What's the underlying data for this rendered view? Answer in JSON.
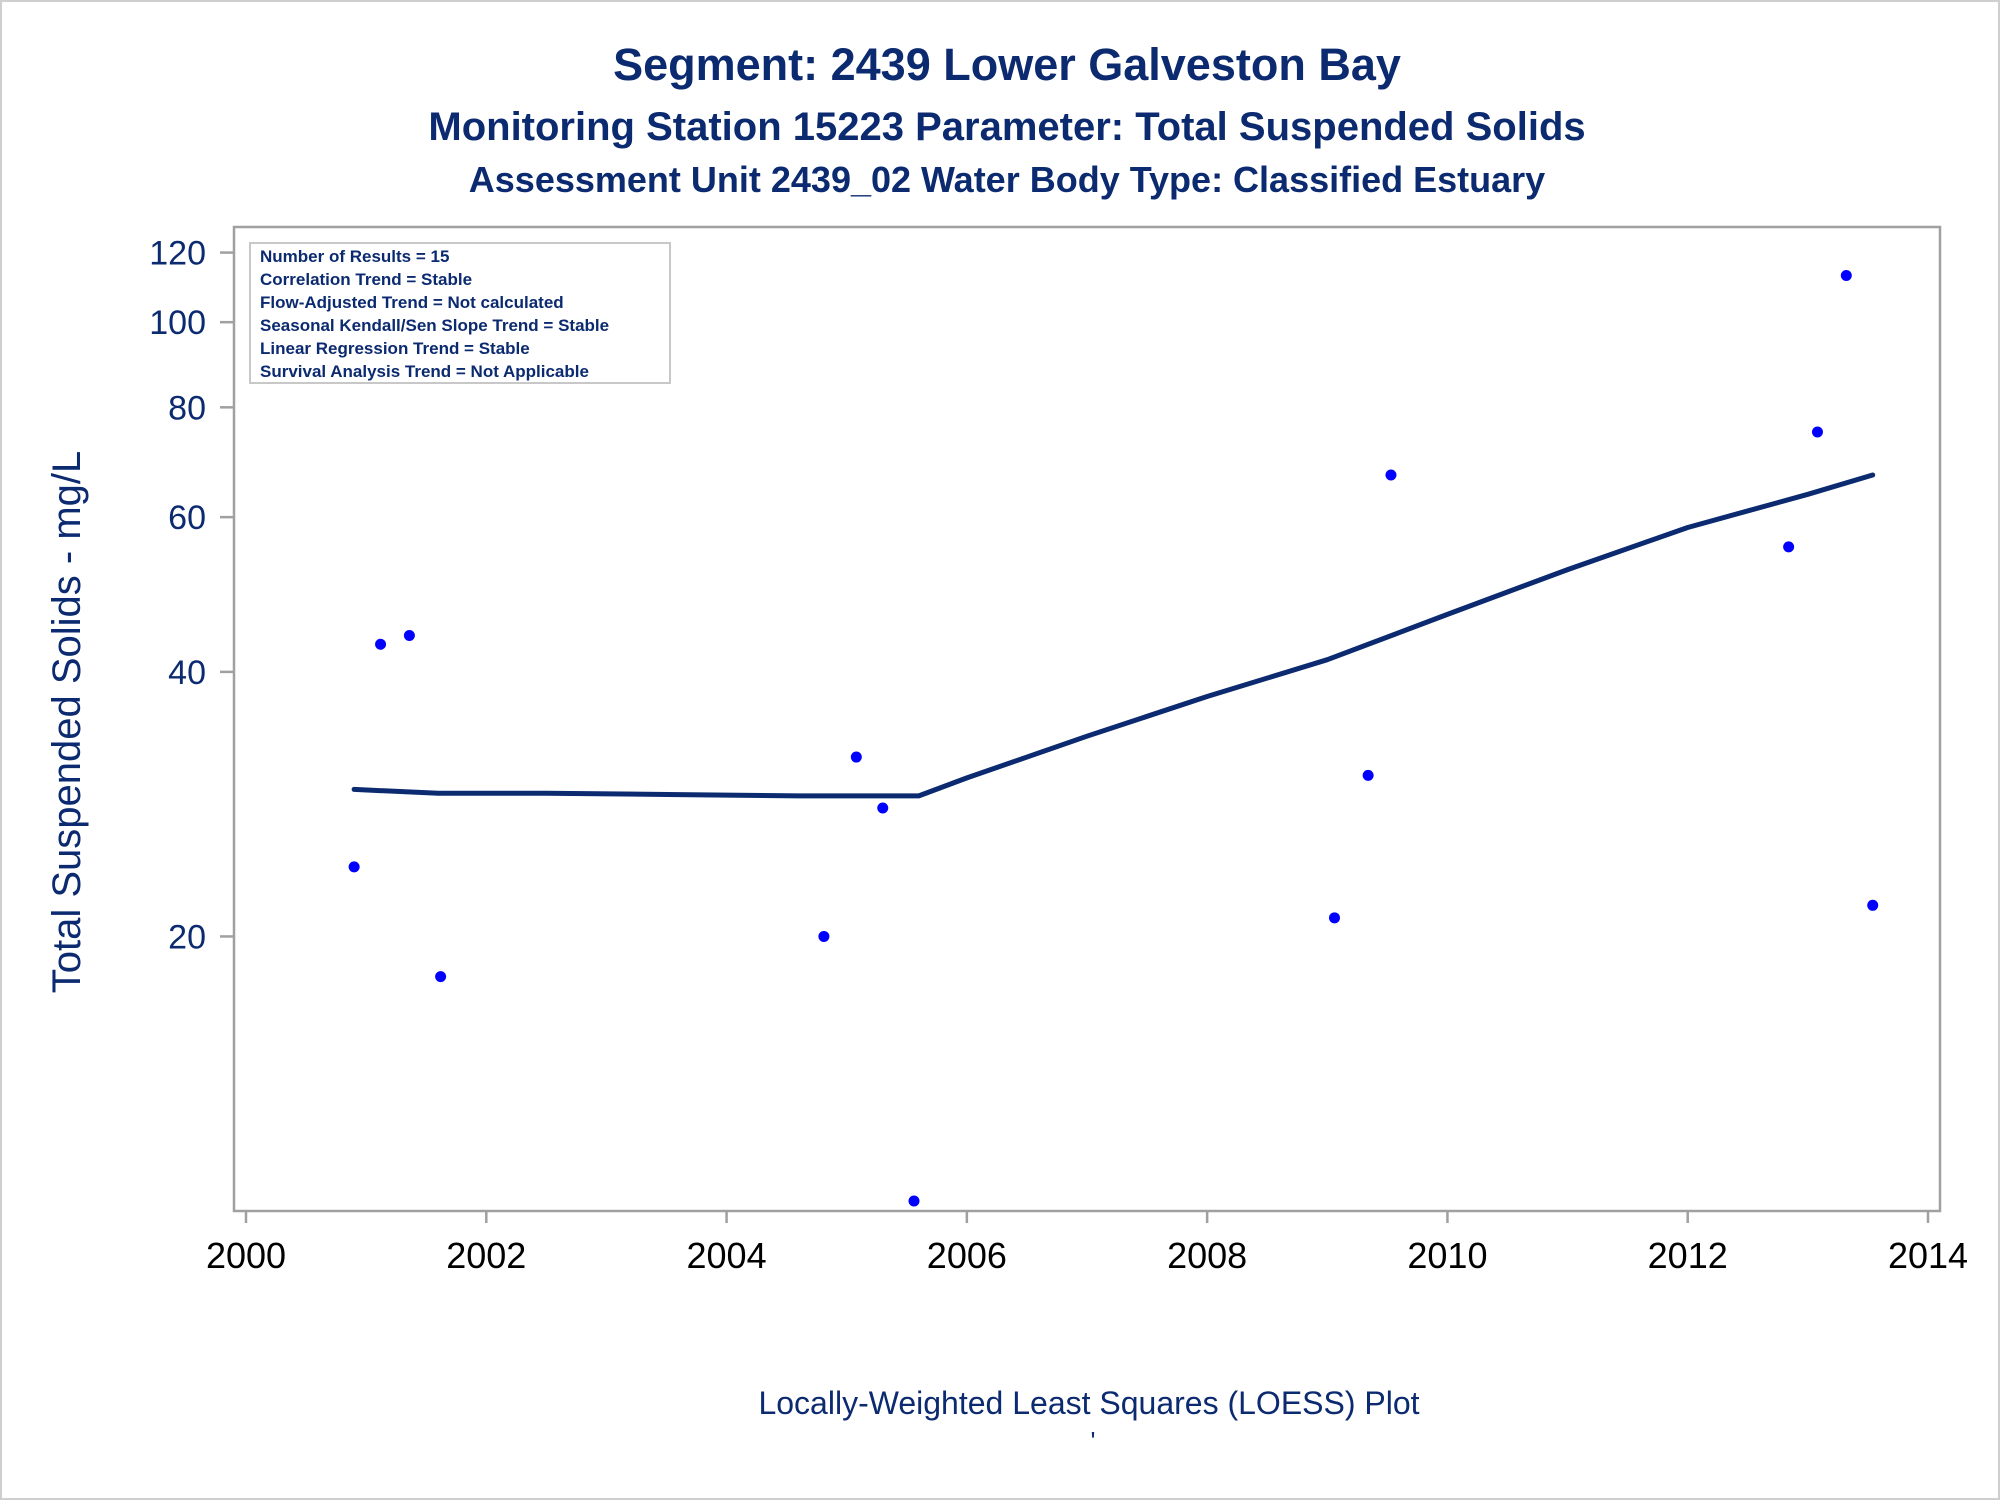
{
  "chart_data": {
    "type": "scatter",
    "title": "Segment: 2439  Lower Galveston Bay",
    "subtitle1": "Monitoring Station 15223 Parameter: Total Suspended Solids",
    "subtitle2": "Assessment Unit 2439_02   Water Body Type: Classified Estuary",
    "xlabel": "",
    "ylabel": "Total Suspended Solids - mg/L",
    "footnote": "Locally-Weighted Least Squares (LOESS) Plot",
    "footnote_mark": "'",
    "y_scale": "log",
    "xlim": [
      2000,
      2014
    ],
    "ylim": [
      10,
      125
    ],
    "x_ticks": [
      2000,
      2002,
      2004,
      2006,
      2008,
      2010,
      2012,
      2014
    ],
    "y_ticks": [
      20,
      40,
      60,
      80,
      100,
      120
    ],
    "stats_box": [
      "Number of Results = 15",
      "Correlation Trend = Stable",
      "Flow-Adjusted Trend = Not calculated",
      "Seasonal Kendall/Sen Slope Trend = Stable",
      "Linear Regression Trend = Stable",
      "Survival Analysis Trend = Not Applicable"
    ],
    "series": [
      {
        "type": "scatter",
        "points": [
          {
            "x": 2000.9,
            "y": 24
          },
          {
            "x": 2001.12,
            "y": 43
          },
          {
            "x": 2001.36,
            "y": 44
          },
          {
            "x": 2001.62,
            "y": 18
          },
          {
            "x": 2004.81,
            "y": 20
          },
          {
            "x": 2005.08,
            "y": 32
          },
          {
            "x": 2005.3,
            "y": 28
          },
          {
            "x": 2005.56,
            "y": 10
          },
          {
            "x": 2009.06,
            "y": 21
          },
          {
            "x": 2009.34,
            "y": 30.5
          },
          {
            "x": 2009.53,
            "y": 67
          },
          {
            "x": 2012.84,
            "y": 55.5
          },
          {
            "x": 2013.08,
            "y": 75
          },
          {
            "x": 2013.32,
            "y": 113
          },
          {
            "x": 2013.54,
            "y": 21.7
          }
        ]
      },
      {
        "type": "line",
        "points": [
          {
            "x": 2000.9,
            "y": 29.4
          },
          {
            "x": 2001.6,
            "y": 29.1
          },
          {
            "x": 2002.5,
            "y": 29.1
          },
          {
            "x": 2003.6,
            "y": 29.0
          },
          {
            "x": 2004.6,
            "y": 28.9
          },
          {
            "x": 2005.6,
            "y": 28.9
          },
          {
            "x": 2006.0,
            "y": 30.3
          },
          {
            "x": 2007.0,
            "y": 33.8
          },
          {
            "x": 2008.0,
            "y": 37.5
          },
          {
            "x": 2009.0,
            "y": 41.3
          },
          {
            "x": 2010.0,
            "y": 46.5
          },
          {
            "x": 2011.0,
            "y": 52.3
          },
          {
            "x": 2012.0,
            "y": 58.4
          },
          {
            "x": 2013.0,
            "y": 63.7
          },
          {
            "x": 2013.54,
            "y": 67.0
          }
        ]
      }
    ],
    "colors": {
      "title": "#0b2a70",
      "axis_text": "#0b2a70",
      "line": "#0b2a70",
      "marker": "#0000ff",
      "frame": "#a0a0a0",
      "border": "#cfcfcf"
    }
  }
}
